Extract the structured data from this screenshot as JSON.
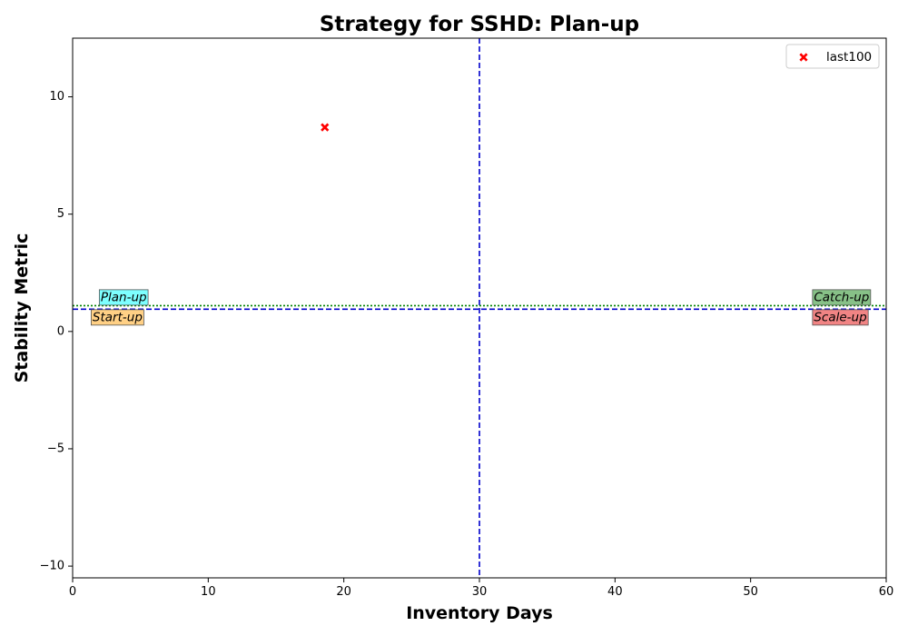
{
  "chart_data": {
    "type": "scatter",
    "title": "Strategy for SSHD: Plan-up",
    "xlabel": "Inventory Days",
    "ylabel": "Stability Metric",
    "xlim": [
      0,
      60
    ],
    "ylim": [
      -10.5,
      12.5
    ],
    "xticks": [
      0,
      10,
      20,
      30,
      40,
      50,
      60
    ],
    "yticks": [
      -10,
      -5,
      0,
      5,
      10
    ],
    "grid": false,
    "legend_position": "top-right",
    "series": [
      {
        "name": "last100",
        "marker": "X",
        "color": "#ff0000",
        "points": [
          {
            "x": 18.6,
            "y": 8.7
          }
        ]
      }
    ],
    "reference_lines": {
      "vertical_dashed_x": 30,
      "horizontal_dashed_y": 0.95,
      "horizontal_dotted_y": 1.1,
      "line_color": "#0000cc",
      "dotted_color": "#008000"
    },
    "quadrant_labels": [
      {
        "text": "Plan-up",
        "x": 2.0,
        "y": 1.45,
        "color": "#66ffff"
      },
      {
        "text": "Start-up",
        "x": 1.4,
        "y": 0.6,
        "color": "#ffc870"
      },
      {
        "text": "Catch-up",
        "x": 54.6,
        "y": 1.45,
        "color": "#72b672"
      },
      {
        "text": "Scale-up",
        "x": 54.6,
        "y": 0.6,
        "color": "#ee6f6f"
      }
    ]
  }
}
